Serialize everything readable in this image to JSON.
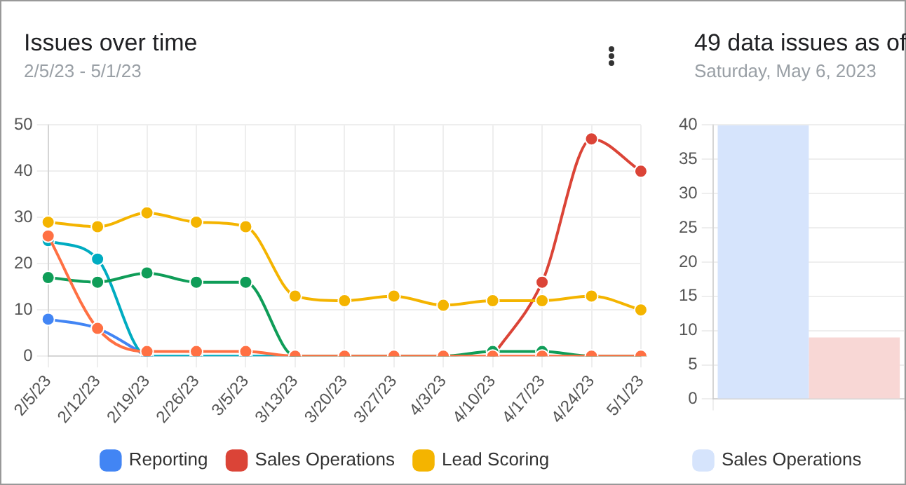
{
  "chart_data": [
    {
      "type": "line",
      "title": "Issues over time",
      "subtitle": "2/5/23 - 5/1/23",
      "categories": [
        "2/5/23",
        "2/12/23",
        "2/19/23",
        "2/26/23",
        "3/5/23",
        "3/13/23",
        "3/20/23",
        "3/27/23",
        "4/3/23",
        "4/10/23",
        "4/17/23",
        "4/24/23",
        "5/1/23"
      ],
      "series": [
        {
          "name": "Reporting",
          "color": "#4285f4",
          "values": [
            8,
            6,
            0,
            null,
            null,
            null,
            null,
            null,
            null,
            null,
            null,
            null,
            null
          ]
        },
        {
          "name": "Sales Operations",
          "color": "#db4437",
          "values": [
            null,
            null,
            null,
            null,
            null,
            null,
            null,
            null,
            null,
            0,
            16,
            47,
            40
          ]
        },
        {
          "name": "Lead Scoring",
          "color": "#f4b400",
          "values": [
            29,
            28,
            31,
            29,
            28,
            13,
            12,
            13,
            11,
            12,
            12,
            13,
            10
          ]
        },
        {
          "color": "#00acc1",
          "values": [
            25,
            21,
            0,
            0,
            0,
            0,
            null,
            null,
            null,
            null,
            null,
            null,
            null
          ]
        },
        {
          "color": "#0f9d58",
          "values": [
            17,
            16,
            18,
            16,
            16,
            0,
            0,
            0,
            0,
            1,
            1,
            0,
            0
          ]
        },
        {
          "color": "#ff7043",
          "values": [
            26,
            6,
            1,
            1,
            1,
            0,
            0,
            0,
            0,
            0,
            0,
            0,
            0
          ]
        }
      ],
      "ylim": [
        0,
        50
      ],
      "yticks": [
        0,
        10,
        20,
        30,
        40,
        50
      ],
      "grid": true,
      "legend": "bottom",
      "marker": "circle"
    },
    {
      "type": "bar",
      "title": "49 data issues as of",
      "subtitle": "Saturday, May 6, 2023",
      "categories": [
        null
      ],
      "series": [
        {
          "name": "Sales Operations",
          "color": "#d6e4fc",
          "values": [
            40
          ]
        },
        {
          "color": "#f8d7d5",
          "values": [
            9
          ]
        }
      ],
      "ylim": [
        0,
        40
      ],
      "yticks": [
        0,
        5,
        10,
        15,
        20,
        25,
        30,
        35,
        40
      ],
      "grid": true,
      "legend": "bottom"
    }
  ]
}
